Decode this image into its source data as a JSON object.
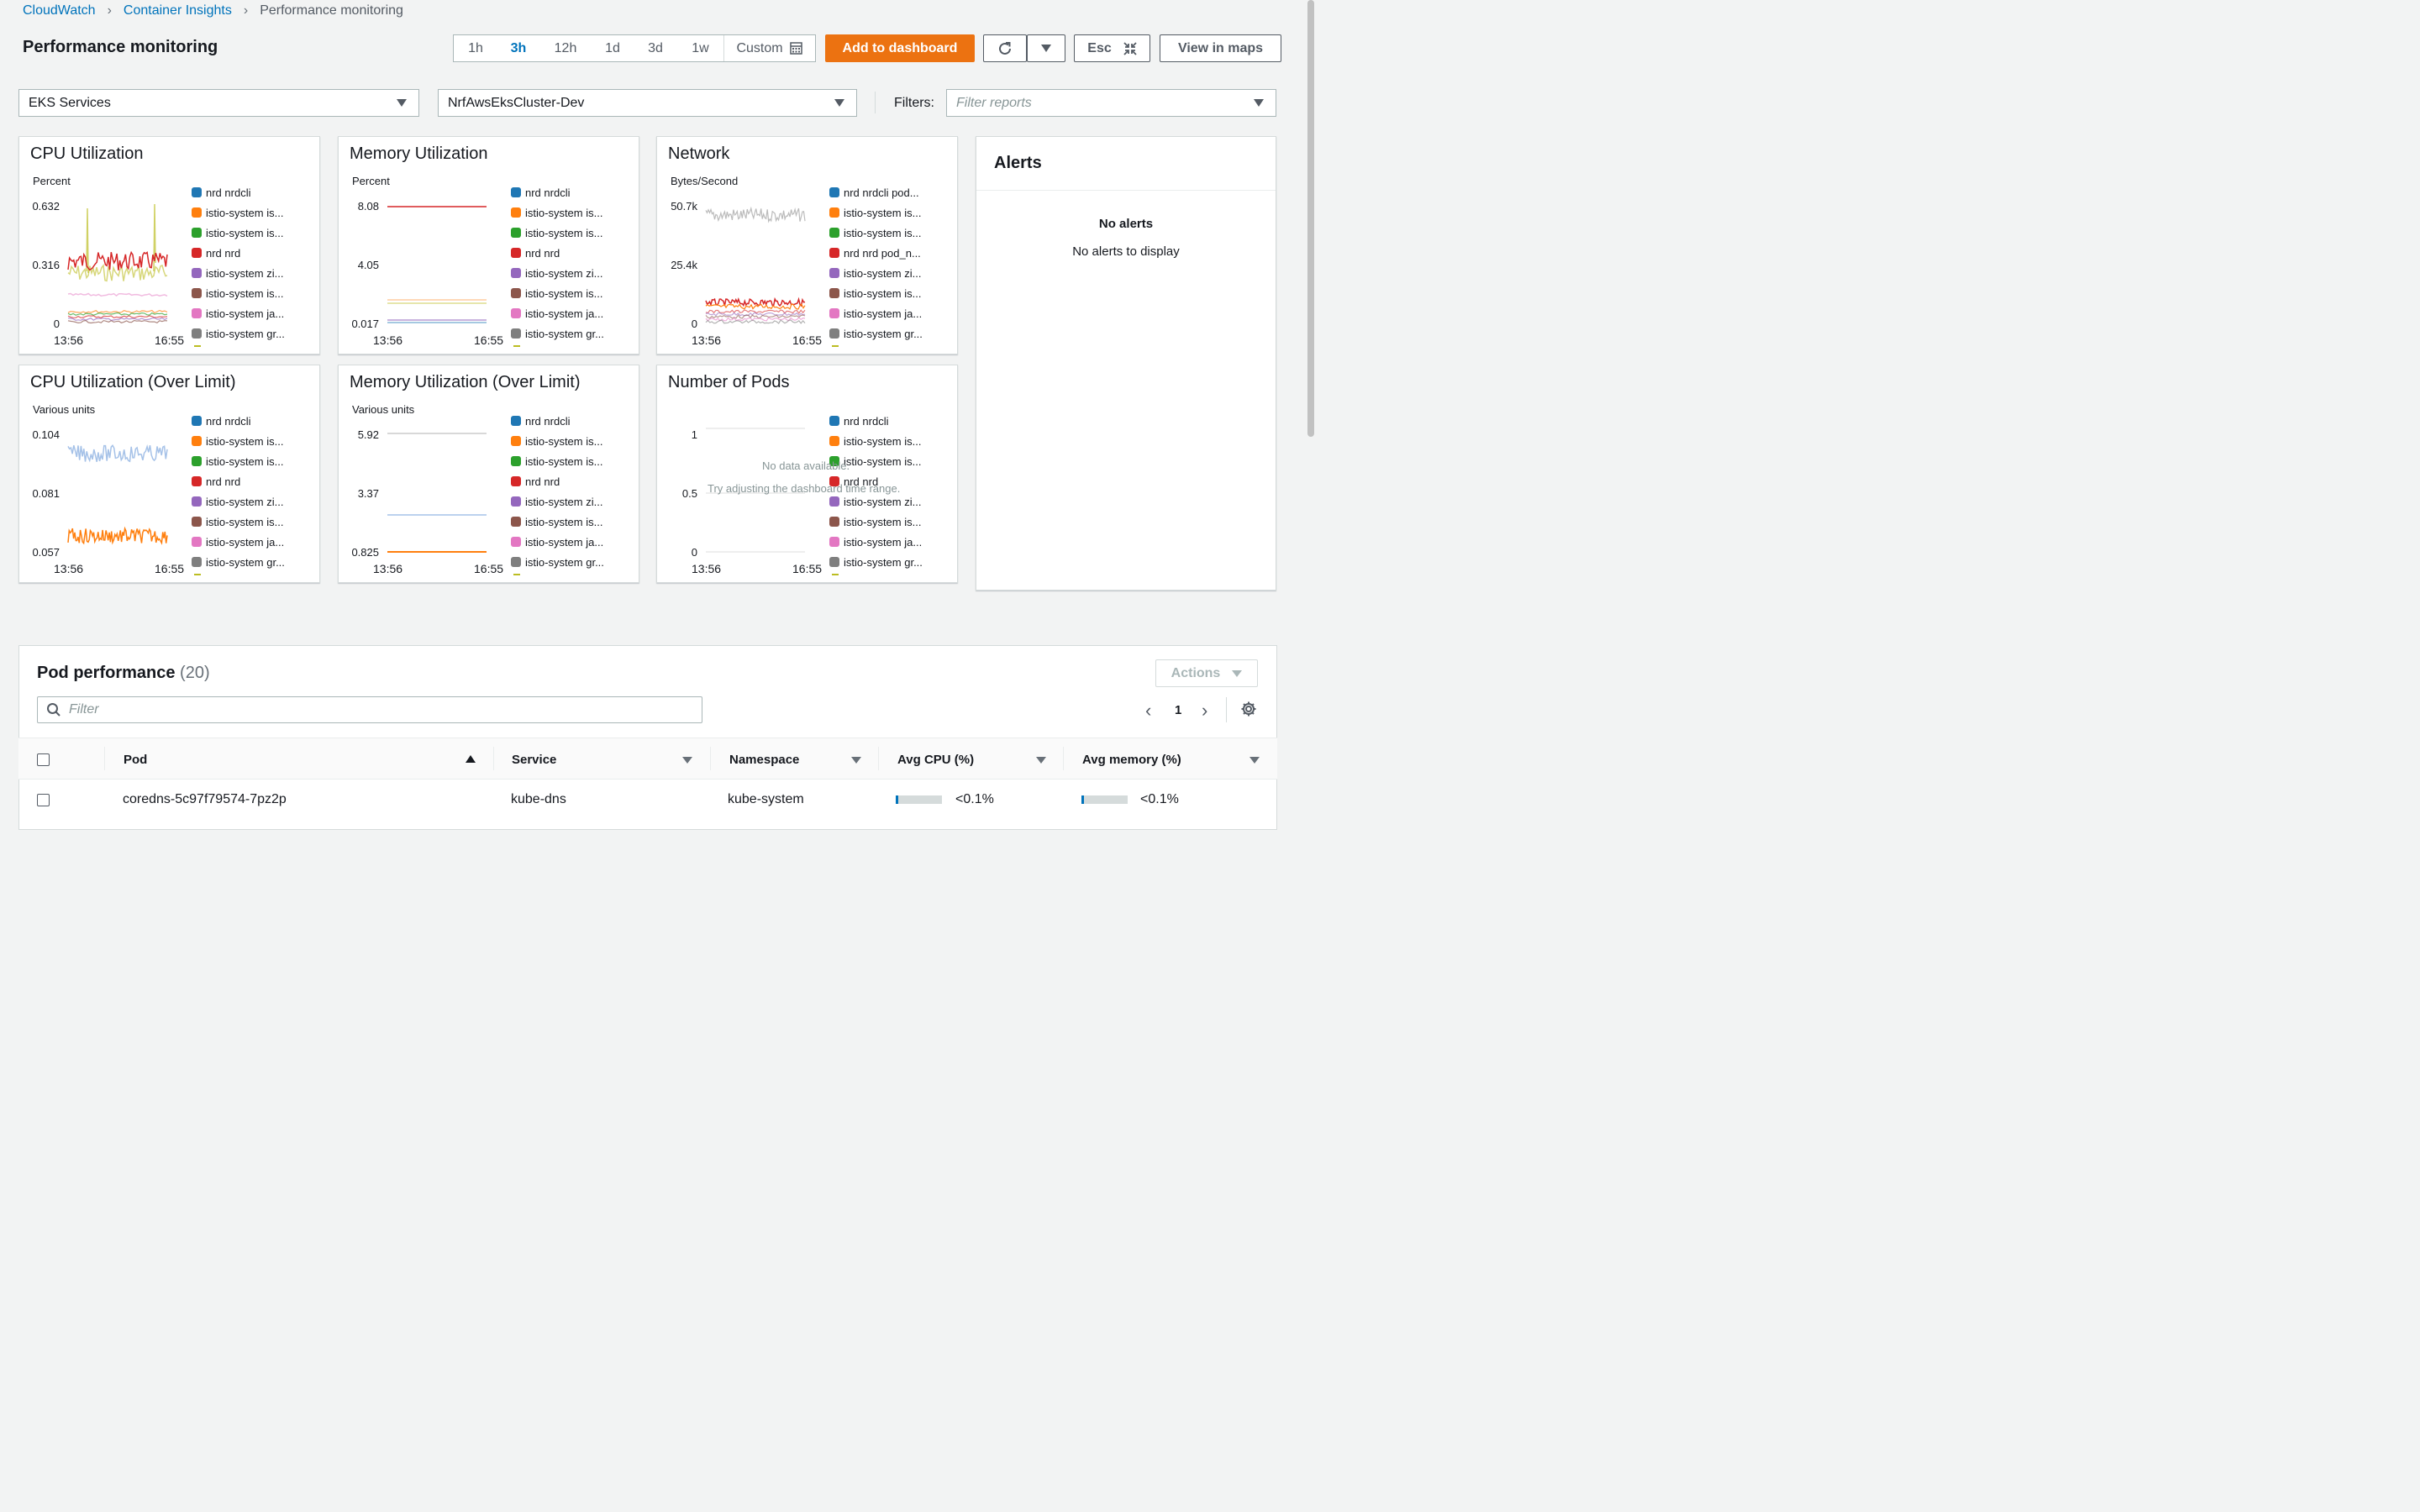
{
  "breadcrumb": {
    "items": [
      "CloudWatch",
      "Container Insights"
    ],
    "current": "Performance monitoring"
  },
  "page_title": "Performance monitoring",
  "timerange": {
    "options": [
      "1h",
      "3h",
      "12h",
      "1d",
      "3d",
      "1w"
    ],
    "selected": "3h",
    "custom": "Custom"
  },
  "toolbar": {
    "add_dashboard": "Add to dashboard",
    "esc": "Esc",
    "view_maps": "View in maps"
  },
  "filters": {
    "resource_type": "EKS Services",
    "cluster": "NrfAwsEksCluster-Dev",
    "label": "Filters:",
    "placeholder": "Filter reports"
  },
  "colors": {
    "accent": "#ec7211",
    "link": "#0073bb",
    "s1": "#1f77b4",
    "s2": "#ff7f0e",
    "s3": "#2ca02c",
    "s4": "#d62728",
    "s5": "#9467bd",
    "s6": "#8c564b",
    "s7": "#e377c2",
    "s8": "#7f7f7f",
    "s9": "#bcbd22"
  },
  "panels": [
    {
      "title": "CPU Utilization",
      "unit": "Percent",
      "yticks": [
        "0.632",
        "0.316",
        "0"
      ],
      "xticks": [
        "13:56",
        "16:55"
      ],
      "legend": [
        "nrd nrdcli",
        "istio-system is...",
        "istio-system is...",
        "nrd nrd",
        "istio-system zi...",
        "istio-system is...",
        "istio-system ja...",
        "istio-system gr..."
      ]
    },
    {
      "title": "Memory Utilization",
      "unit": "Percent",
      "yticks": [
        "8.08",
        "4.05",
        "0.017"
      ],
      "xticks": [
        "13:56",
        "16:55"
      ],
      "legend": [
        "nrd nrdcli",
        "istio-system is...",
        "istio-system is...",
        "nrd nrd",
        "istio-system zi...",
        "istio-system is...",
        "istio-system ja...",
        "istio-system gr..."
      ]
    },
    {
      "title": "Network",
      "unit": "Bytes/Second",
      "yticks": [
        "50.7k",
        "25.4k",
        "0"
      ],
      "xticks": [
        "13:56",
        "16:55"
      ],
      "legend": [
        "nrd nrdcli pod...",
        "istio-system is...",
        "istio-system is...",
        "nrd nrd pod_n...",
        "istio-system zi...",
        "istio-system is...",
        "istio-system ja...",
        "istio-system gr..."
      ]
    },
    {
      "title": "CPU Utilization (Over Limit)",
      "unit": "Various units",
      "yticks": [
        "0.104",
        "0.081",
        "0.057"
      ],
      "xticks": [
        "13:56",
        "16:55"
      ],
      "legend": [
        "nrd nrdcli",
        "istio-system is...",
        "istio-system is...",
        "nrd nrd",
        "istio-system zi...",
        "istio-system is...",
        "istio-system ja...",
        "istio-system gr..."
      ]
    },
    {
      "title": "Memory Utilization (Over Limit)",
      "unit": "Various units",
      "yticks": [
        "5.92",
        "3.37",
        "0.825"
      ],
      "xticks": [
        "13:56",
        "16:55"
      ],
      "legend": [
        "nrd nrdcli",
        "istio-system is...",
        "istio-system is...",
        "nrd nrd",
        "istio-system zi...",
        "istio-system is...",
        "istio-system ja...",
        "istio-system gr..."
      ]
    },
    {
      "title": "Number of Pods",
      "unit": "",
      "yticks": [
        "1",
        "0.5",
        "0"
      ],
      "xticks": [
        "13:56",
        "16:55"
      ],
      "nodata1": "No data available.",
      "nodata2": "Try adjusting the dashboard time range.",
      "legend": [
        "nrd nrdcli",
        "istio-system is...",
        "istio-system is...",
        "nrd nrd",
        "istio-system zi...",
        "istio-system is...",
        "istio-system ja...",
        "istio-system gr..."
      ]
    }
  ],
  "alerts": {
    "title": "Alerts",
    "empty_title": "No alerts",
    "empty_text": "No alerts to display"
  },
  "pod_performance": {
    "title": "Pod performance",
    "count": "(20)",
    "actions": "Actions",
    "filter_placeholder": "Filter",
    "page": "1",
    "columns": [
      "Pod",
      "Service",
      "Namespace",
      "Avg CPU (%)",
      "Avg memory (%)"
    ],
    "rows": [
      {
        "pod": "coredns-5c97f79574-7pz2p",
        "service": "kube-dns",
        "namespace": "kube-system",
        "cpu": "<0.1%",
        "cpu_fill": 0.05,
        "memory": "<0.1%",
        "memory_fill": 0.05
      }
    ]
  }
}
